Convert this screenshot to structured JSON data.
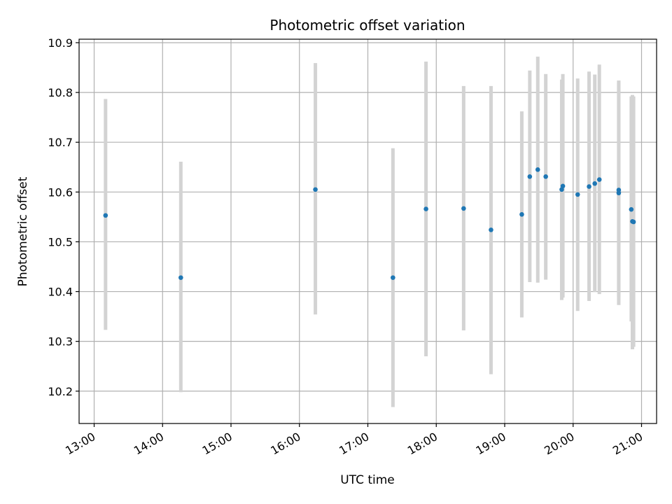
{
  "chart_data": {
    "type": "scatter",
    "title": "Photometric offset variation",
    "xlabel": "UTC time",
    "ylabel": "Photometric offset",
    "x_tick_labels": [
      "13:00",
      "14:00",
      "15:00",
      "16:00",
      "17:00",
      "18:00",
      "19:00",
      "20:00",
      "21:00"
    ],
    "x_ticks_hours": [
      13,
      14,
      15,
      16,
      17,
      18,
      19,
      20,
      21
    ],
    "y_ticks": [
      10.2,
      10.3,
      10.4,
      10.5,
      10.6,
      10.7,
      10.8,
      10.9
    ],
    "y_tick_labels": [
      "10.2",
      "10.3",
      "10.4",
      "10.5",
      "10.6",
      "10.7",
      "10.8",
      "10.9"
    ],
    "xlim_hours": [
      12.78,
      21.22
    ],
    "ylim": [
      10.135,
      10.907
    ],
    "grid": true,
    "marker_color": "#1f77b4",
    "errorbar_color": "#d3d3d3",
    "points": [
      {
        "t": "13:10",
        "y": 10.553,
        "lo": 10.323,
        "hi": 10.787
      },
      {
        "t": "14:16",
        "y": 10.428,
        "lo": 10.198,
        "hi": 10.661
      },
      {
        "t": "16:14",
        "y": 10.605,
        "lo": 10.354,
        "hi": 10.859
      },
      {
        "t": "17:22",
        "y": 10.428,
        "lo": 10.168,
        "hi": 10.688
      },
      {
        "t": "17:51",
        "y": 10.566,
        "lo": 10.27,
        "hi": 10.862
      },
      {
        "t": "18:24",
        "y": 10.567,
        "lo": 10.322,
        "hi": 10.813
      },
      {
        "t": "18:48",
        "y": 10.524,
        "lo": 10.234,
        "hi": 10.813
      },
      {
        "t": "19:15",
        "y": 10.555,
        "lo": 10.348,
        "hi": 10.762
      },
      {
        "t": "19:22",
        "y": 10.631,
        "lo": 10.419,
        "hi": 10.844
      },
      {
        "t": "19:29",
        "y": 10.645,
        "lo": 10.418,
        "hi": 10.872
      },
      {
        "t": "19:36",
        "y": 10.631,
        "lo": 10.424,
        "hi": 10.837
      },
      {
        "t": "19:50",
        "y": 10.605,
        "lo": 10.383,
        "hi": 10.826
      },
      {
        "t": "19:51",
        "y": 10.612,
        "lo": 10.388,
        "hi": 10.837
      },
      {
        "t": "20:04",
        "y": 10.595,
        "lo": 10.361,
        "hi": 10.828
      },
      {
        "t": "20:14",
        "y": 10.611,
        "lo": 10.381,
        "hi": 10.842
      },
      {
        "t": "20:19",
        "y": 10.617,
        "lo": 10.399,
        "hi": 10.836
      },
      {
        "t": "20:23",
        "y": 10.625,
        "lo": 10.395,
        "hi": 10.856
      },
      {
        "t": "20:40",
        "y": 10.604,
        "lo": 10.373,
        "hi": 10.824
      },
      {
        "t": "20:40",
        "y": 10.598,
        "lo": 10.39,
        "hi": 10.82
      },
      {
        "t": "20:51",
        "y": 10.565,
        "lo": 10.34,
        "hi": 10.792
      },
      {
        "t": "20:52",
        "y": 10.541,
        "lo": 10.284,
        "hi": 10.795
      },
      {
        "t": "20:53",
        "y": 10.54,
        "lo": 10.289,
        "hi": 10.792
      }
    ]
  }
}
